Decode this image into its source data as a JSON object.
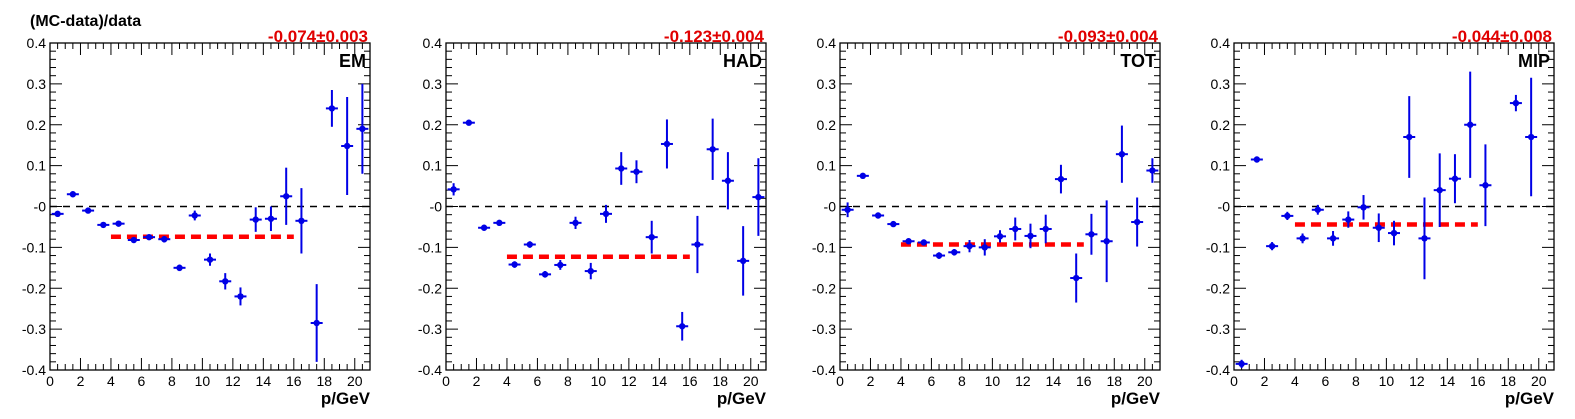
{
  "figure_ylabel": "(MC-data)/data",
  "chart_data": [
    {
      "type": "scatter",
      "panel": "EM",
      "fit_label": "-0.074±0.003",
      "fit": {
        "value": -0.074,
        "x_from": 4,
        "x_to": 16
      },
      "xlabel": "p/GeV",
      "xlim": [
        0,
        21
      ],
      "ylim": [
        -0.4,
        0.4
      ],
      "reference_line": 0,
      "x": [
        0.5,
        1.5,
        2.5,
        3.5,
        4.5,
        5.5,
        6.5,
        7.5,
        8.5,
        9.5,
        10.5,
        11.5,
        12.5,
        13.5,
        14.5,
        15.5,
        16.5,
        17.5,
        18.5,
        19.5,
        20.5
      ],
      "y": [
        -0.018,
        0.03,
        -0.01,
        -0.045,
        -0.042,
        -0.082,
        -0.075,
        -0.08,
        -0.15,
        -0.022,
        -0.13,
        -0.183,
        -0.22,
        -0.032,
        -0.03,
        0.025,
        -0.035,
        -0.285,
        0.24,
        0.148,
        0.19
      ],
      "yerr": [
        0.004,
        0.004,
        0.004,
        0.004,
        0.004,
        0.006,
        0.006,
        0.008,
        0.008,
        0.012,
        0.015,
        0.02,
        0.022,
        0.03,
        0.03,
        0.07,
        0.08,
        0.095,
        0.045,
        0.12,
        0.11
      ]
    },
    {
      "type": "scatter",
      "panel": "HAD",
      "fit_label": "-0.123±0.004",
      "fit": {
        "value": -0.123,
        "x_from": 4,
        "x_to": 16
      },
      "xlabel": "p/GeV",
      "xlim": [
        0,
        21
      ],
      "ylim": [
        -0.4,
        0.4
      ],
      "reference_line": 0,
      "x": [
        0.5,
        1.5,
        2.5,
        3.5,
        4.5,
        5.5,
        6.5,
        7.5,
        8.5,
        9.5,
        10.5,
        11.5,
        12.5,
        13.5,
        14.5,
        15.5,
        16.5,
        17.5,
        18.5,
        19.5,
        20.5
      ],
      "y": [
        0.042,
        0.205,
        -0.052,
        -0.04,
        -0.142,
        -0.093,
        -0.166,
        -0.143,
        -0.04,
        -0.158,
        -0.018,
        0.093,
        0.085,
        -0.075,
        0.153,
        -0.293,
        -0.093,
        0.14,
        0.063,
        -0.133,
        0.023
      ],
      "yerr": [
        0.015,
        0.004,
        0.004,
        0.004,
        0.008,
        0.008,
        0.008,
        0.012,
        0.015,
        0.02,
        0.022,
        0.04,
        0.028,
        0.04,
        0.06,
        0.035,
        0.07,
        0.075,
        0.07,
        0.085,
        0.095
      ]
    },
    {
      "type": "scatter",
      "panel": "TOT",
      "fit_label": "-0.093±0.004",
      "fit": {
        "value": -0.093,
        "x_from": 4,
        "x_to": 16
      },
      "xlabel": "p/GeV",
      "xlim": [
        0,
        21
      ],
      "ylim": [
        -0.4,
        0.4
      ],
      "reference_line": 0,
      "x": [
        0.5,
        1.5,
        2.5,
        3.5,
        4.5,
        5.5,
        6.5,
        7.5,
        8.5,
        9.5,
        10.5,
        11.5,
        12.5,
        13.5,
        14.5,
        15.5,
        16.5,
        17.5,
        18.5,
        19.5,
        20.5
      ],
      "y": [
        -0.008,
        0.075,
        -0.022,
        -0.043,
        -0.085,
        -0.088,
        -0.12,
        -0.112,
        -0.097,
        -0.1,
        -0.073,
        -0.055,
        -0.072,
        -0.055,
        0.067,
        -0.175,
        -0.068,
        -0.085,
        0.128,
        -0.038,
        0.088
      ],
      "yerr": [
        0.018,
        0.004,
        0.004,
        0.004,
        0.006,
        0.006,
        0.008,
        0.008,
        0.015,
        0.02,
        0.015,
        0.028,
        0.03,
        0.035,
        0.035,
        0.06,
        0.05,
        0.1,
        0.07,
        0.06,
        0.03
      ]
    },
    {
      "type": "scatter",
      "panel": "MIP",
      "fit_label": "-0.044±0.008",
      "fit": {
        "value": -0.044,
        "x_from": 4,
        "x_to": 16
      },
      "xlabel": "p/GeV",
      "xlim": [
        0,
        21
      ],
      "ylim": [
        -0.4,
        0.4
      ],
      "reference_line": 0,
      "x": [
        0.5,
        1.5,
        2.5,
        3.5,
        4.5,
        5.5,
        6.5,
        7.5,
        8.5,
        9.5,
        10.5,
        11.5,
        12.5,
        13.5,
        14.5,
        15.5,
        16.5,
        17.5,
        18.5,
        19.5,
        20.5
      ],
      "y": [
        -0.385,
        0.115,
        -0.097,
        -0.023,
        -0.078,
        -0.008,
        -0.078,
        -0.032,
        -0.002,
        -0.052,
        -0.065,
        0.17,
        -0.078,
        0.04,
        0.068,
        0.2,
        0.052,
        null,
        0.253,
        0.17,
        null
      ],
      "yerr": [
        0.01,
        0.006,
        0.01,
        0.01,
        0.012,
        0.012,
        0.018,
        0.02,
        0.03,
        0.035,
        0.03,
        0.1,
        0.1,
        0.09,
        0.06,
        0.13,
        0.1,
        null,
        0.02,
        0.145,
        null
      ]
    }
  ],
  "colors": {
    "points": "#0000e6",
    "fit": "#ff0000",
    "fit_label": "#e00000",
    "axis": "#000000"
  }
}
